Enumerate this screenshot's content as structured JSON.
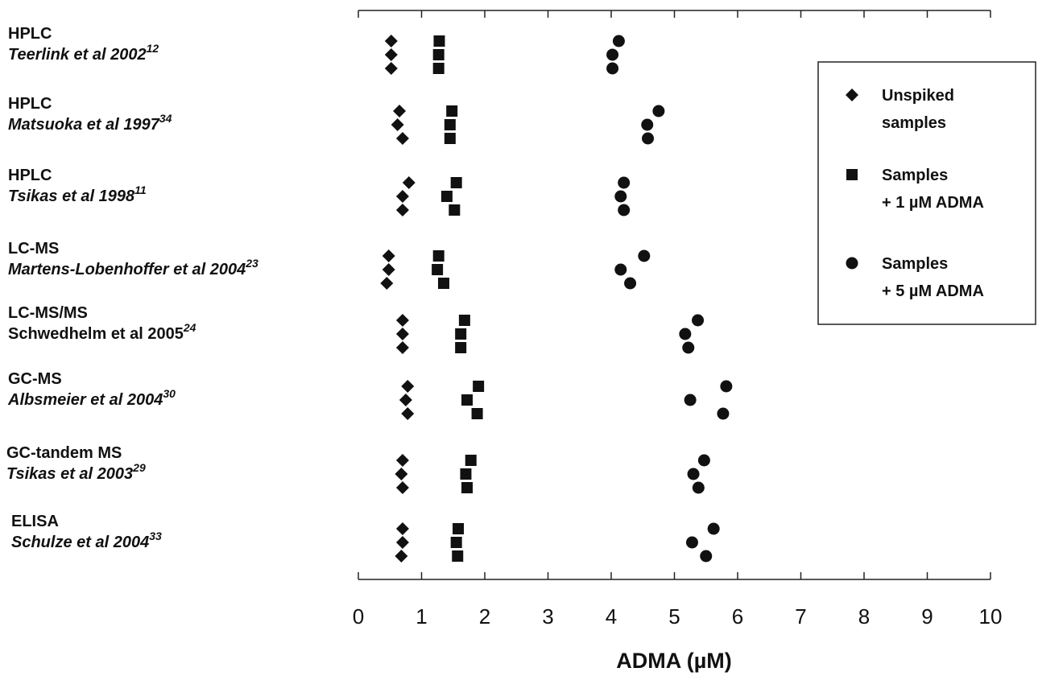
{
  "chart_data": {
    "type": "scatter",
    "xlabel": "ADMA (µM)",
    "xlim": [
      0,
      10
    ],
    "x_ticks": [
      "0",
      "1",
      "2",
      "3",
      "4",
      "5",
      "6",
      "7",
      "8",
      "9",
      "10"
    ],
    "grid": false,
    "legend_placement": "right",
    "colors": {
      "marker": "#111111",
      "axis": "#222222"
    },
    "categories": [
      {
        "method": "HPLC",
        "authors": "Teerlink et al 2002",
        "ref": "12",
        "ref_italic": true
      },
      {
        "method": "HPLC",
        "authors": "Matsuoka et al 1997",
        "ref": "34",
        "ref_italic": true
      },
      {
        "method": "HPLC",
        "authors": "Tsikas et al 1998",
        "ref": "11",
        "ref_italic": true
      },
      {
        "method": "LC-MS",
        "authors": "Martens-Lobenhoffer et al 2004",
        "ref": "23",
        "ref_italic": true
      },
      {
        "method": "LC-MS/MS",
        "authors": "Schwedhelm et al 2005",
        "ref": "24",
        "ref_italic": false
      },
      {
        "method": "GC-MS",
        "authors": "Albsmeier et al 2004",
        "ref": "30",
        "ref_italic": true
      },
      {
        "method": "GC-tandem MS",
        "authors": "Tsikas et al 2003",
        "ref": "29",
        "ref_italic": true
      },
      {
        "method": "ELISA",
        "authors": "Schulze et al 2004",
        "ref": "33",
        "ref_italic": true
      }
    ],
    "series": [
      {
        "name": "Unspiked samples",
        "marker": "diamond",
        "values": [
          [
            0.52,
            0.52,
            0.52
          ],
          [
            0.65,
            0.62,
            0.7
          ],
          [
            0.8,
            0.7,
            0.7
          ],
          [
            0.48,
            0.48,
            0.45
          ],
          [
            0.7,
            0.7,
            0.7
          ],
          [
            0.78,
            0.75,
            0.78
          ],
          [
            0.7,
            0.68,
            0.7
          ],
          [
            0.7,
            0.7,
            0.68
          ]
        ]
      },
      {
        "name": "Samples + 1 µM ADMA",
        "marker": "square",
        "values": [
          [
            1.28,
            1.27,
            1.27
          ],
          [
            1.48,
            1.45,
            1.45
          ],
          [
            1.55,
            1.4,
            1.52
          ],
          [
            1.27,
            1.25,
            1.35
          ],
          [
            1.68,
            1.62,
            1.62
          ],
          [
            1.9,
            1.72,
            1.88
          ],
          [
            1.78,
            1.7,
            1.72
          ],
          [
            1.58,
            1.55,
            1.57
          ]
        ]
      },
      {
        "name": "Samples + 5 µM ADMA",
        "marker": "circle",
        "values": [
          [
            4.12,
            4.02,
            4.02
          ],
          [
            4.75,
            4.57,
            4.58
          ],
          [
            4.2,
            4.15,
            4.2
          ],
          [
            4.52,
            4.15,
            4.3
          ],
          [
            5.37,
            5.17,
            5.22
          ],
          [
            5.82,
            5.25,
            5.77
          ],
          [
            5.47,
            5.3,
            5.38
          ],
          [
            5.62,
            5.28,
            5.5
          ]
        ]
      }
    ],
    "legend": [
      {
        "marker": "diamond",
        "lines": [
          "Unspiked",
          "samples"
        ]
      },
      {
        "marker": "square",
        "lines": [
          "Samples",
          "+ 1 µM ADMA"
        ]
      },
      {
        "marker": "circle",
        "lines": [
          "Samples",
          "+ 5 µM ADMA"
        ]
      }
    ]
  }
}
